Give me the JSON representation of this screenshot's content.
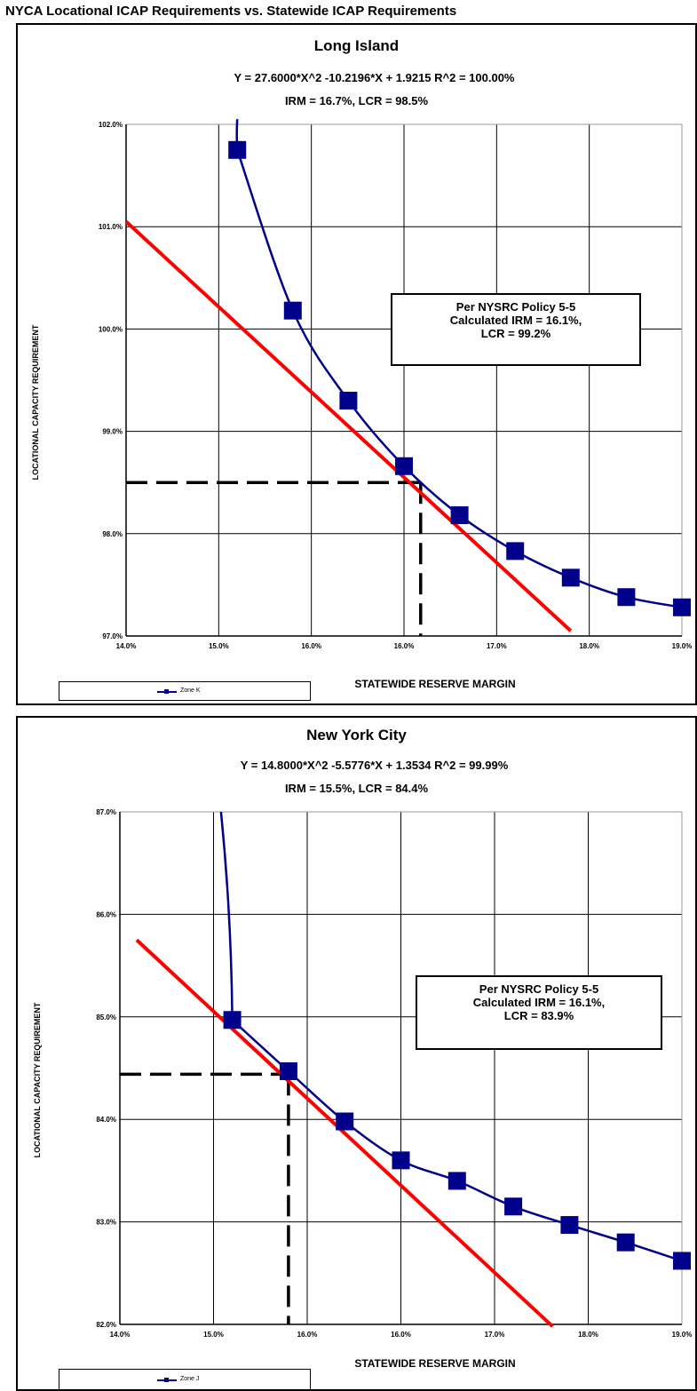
{
  "page_title": "NYCA Locational ICAP Requirements vs. Statewide ICAP Requirements",
  "colors": {
    "curve": "#00008b",
    "fit_line": "#ff0000",
    "grid": "#000000",
    "dash": "#000000"
  },
  "chart_data": [
    {
      "type": "line",
      "title": "Long Island",
      "equation": "Y = 27.6000*X^2 -10.2196*X + 1.9215     R^2 = 100.00%",
      "irm_lcr": "IRM = 16.7%, LCR = 98.5%",
      "xlabel": "STATEWIDE RESERVE MARGIN",
      "ylabel": "LOCATIONAL CAPACITY REQUIREMENT",
      "xlim": [
        14.0,
        19.0
      ],
      "ylim": [
        97.0,
        102.0
      ],
      "x_ticks": [
        "14.0%",
        "15.0%",
        "16.0%",
        "16.0%",
        "17.0%",
        "18.0%",
        "19.0%"
      ],
      "y_ticks": [
        "97.0%",
        "98.0%",
        "99.0%",
        "100.0%",
        "101.0%",
        "102.0%"
      ],
      "grid": true,
      "series": [
        {
          "name": "Zone K",
          "x": [
            15.0,
            15.5,
            16.0,
            16.5,
            17.0,
            17.5,
            18.0,
            18.5,
            19.0
          ],
          "y": [
            101.75,
            100.18,
            99.3,
            98.66,
            98.18,
            97.83,
            97.57,
            97.38,
            97.28
          ],
          "curve_start": [
            15.0,
            102.05
          ]
        }
      ],
      "fit_line": {
        "x": [
          14.0,
          18.0
        ],
        "y": [
          101.05,
          97.05
        ]
      },
      "crosshair": {
        "x": 16.65,
        "y": 98.5
      },
      "annotation": [
        "Per NYSRC Policy 5-5",
        "Calculated IRM = 16.1%,",
        "LCR = 99.2%"
      ]
    },
    {
      "type": "line",
      "title": "New York City",
      "equation": "Y = 14.8000*X^2 -5.5776*X + 1.3534     R^2 = 99.99%",
      "irm_lcr": "IRM = 15.5%, LCR = 84.4%",
      "xlabel": "STATEWIDE RESERVE MARGIN",
      "ylabel": "LOCATIONAL CAPACITY REQUIREMENT",
      "xlim": [
        14.0,
        19.0
      ],
      "ylim": [
        82.0,
        87.0
      ],
      "x_ticks": [
        "14.0%",
        "15.0%",
        "16.0%",
        "16.0%",
        "17.0%",
        "18.0%",
        "19.0%"
      ],
      "y_ticks": [
        "82.0%",
        "83.0%",
        "84.0%",
        "85.0%",
        "86.0%",
        "87.0%"
      ],
      "grid": true,
      "series": [
        {
          "name": "Zone J",
          "x": [
            15.0,
            15.5,
            16.0,
            16.5,
            17.0,
            17.5,
            18.0,
            18.5,
            19.0
          ],
          "y": [
            84.97,
            84.47,
            83.98,
            83.6,
            83.4,
            83.15,
            82.97,
            82.8,
            82.62
          ],
          "curve_start": [
            14.9,
            87.0
          ]
        }
      ],
      "fit_line": {
        "x": [
          14.15,
          17.85
        ],
        "y": [
          85.75,
          81.98
        ]
      },
      "crosshair": {
        "x": 15.5,
        "y": 84.44
      },
      "annotation": [
        "Per NYSRC Policy 5-5",
        "Calculated IRM = 16.1%,",
        "LCR = 83.9%"
      ]
    }
  ]
}
